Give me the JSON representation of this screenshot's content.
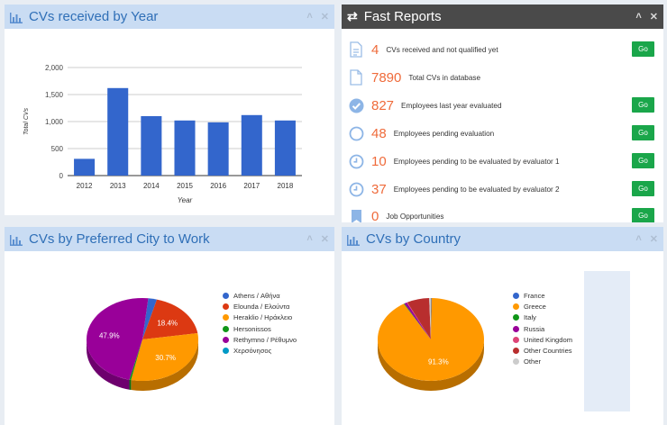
{
  "panel_year": {
    "title": "CVs received by Year",
    "chart_data": {
      "type": "bar",
      "categories": [
        "2012",
        "2013",
        "2014",
        "2015",
        "2016",
        "2017",
        "2018"
      ],
      "values": [
        310,
        1620,
        1100,
        1020,
        985,
        1120,
        1020
      ],
      "xlabel": "Year",
      "ylabel": "Total CVs",
      "ylim": [
        0,
        2000
      ],
      "yticks": [
        "0",
        "500",
        "1,000",
        "1,500",
        "2,000"
      ],
      "bar_color": "#3366cc",
      "grid": true
    }
  },
  "fast_reports": {
    "title": "Fast Reports",
    "go_label": "Go",
    "rows": [
      {
        "icon": "document-icon",
        "value": "4",
        "label": "CVs received and not qualified yet",
        "go": true
      },
      {
        "icon": "file-icon",
        "value": "7890",
        "label": "Total CVs in database",
        "go": false
      },
      {
        "icon": "check-circle-icon",
        "value": "827",
        "label": "Employees last year evaluated",
        "go": true
      },
      {
        "icon": "circle-icon",
        "value": "48",
        "label": "Employees pending evaluation",
        "go": true
      },
      {
        "icon": "clock-icon",
        "value": "10",
        "label": "Employees pending to be evaluated by evaluator 1",
        "go": true
      },
      {
        "icon": "clock-icon",
        "value": "37",
        "label": "Employees pending to be evaluated by evaluator 2",
        "go": true
      },
      {
        "icon": "bookmark-icon",
        "value": "0",
        "label": "Job Opportunities",
        "go": true
      }
    ]
  },
  "panel_city": {
    "title": "CVs by Preferred City to Work",
    "chart_data": {
      "type": "pie",
      "categories": [
        "Athens / Αθήνα",
        "Elounda / Ελούντα",
        "Heraklio / Ηράκλειο",
        "Hersonissos",
        "Rethymno / Ρέθυμνο",
        "Χερσόνησος"
      ],
      "values": [
        2.5,
        18.4,
        30.7,
        0.5,
        47.9,
        0.0
      ],
      "data_labels": [
        "",
        "18.4%",
        "30.7%",
        "",
        "47.9%",
        ""
      ],
      "colors": [
        "#3366cc",
        "#dc3912",
        "#ff9900",
        "#109618",
        "#990099",
        "#0099c6"
      ],
      "legend": "right",
      "style": "3d"
    }
  },
  "panel_country": {
    "title": "CVs by Country",
    "chart_data": {
      "type": "pie",
      "categories": [
        "France",
        "Greece",
        "Italy",
        "Russia",
        "United Kingdom",
        "Other Countries",
        "Other"
      ],
      "values": [
        0.2,
        91.3,
        0.2,
        0.8,
        0.2,
        6.8,
        0.5
      ],
      "data_labels": [
        "",
        "91.3%",
        "",
        "",
        "",
        "",
        ""
      ],
      "colors": [
        "#3366cc",
        "#ff9900",
        "#109618",
        "#990099",
        "#dd4477",
        "#b82e2e",
        "#cccccc"
      ],
      "legend": "right",
      "style": "3d"
    }
  }
}
